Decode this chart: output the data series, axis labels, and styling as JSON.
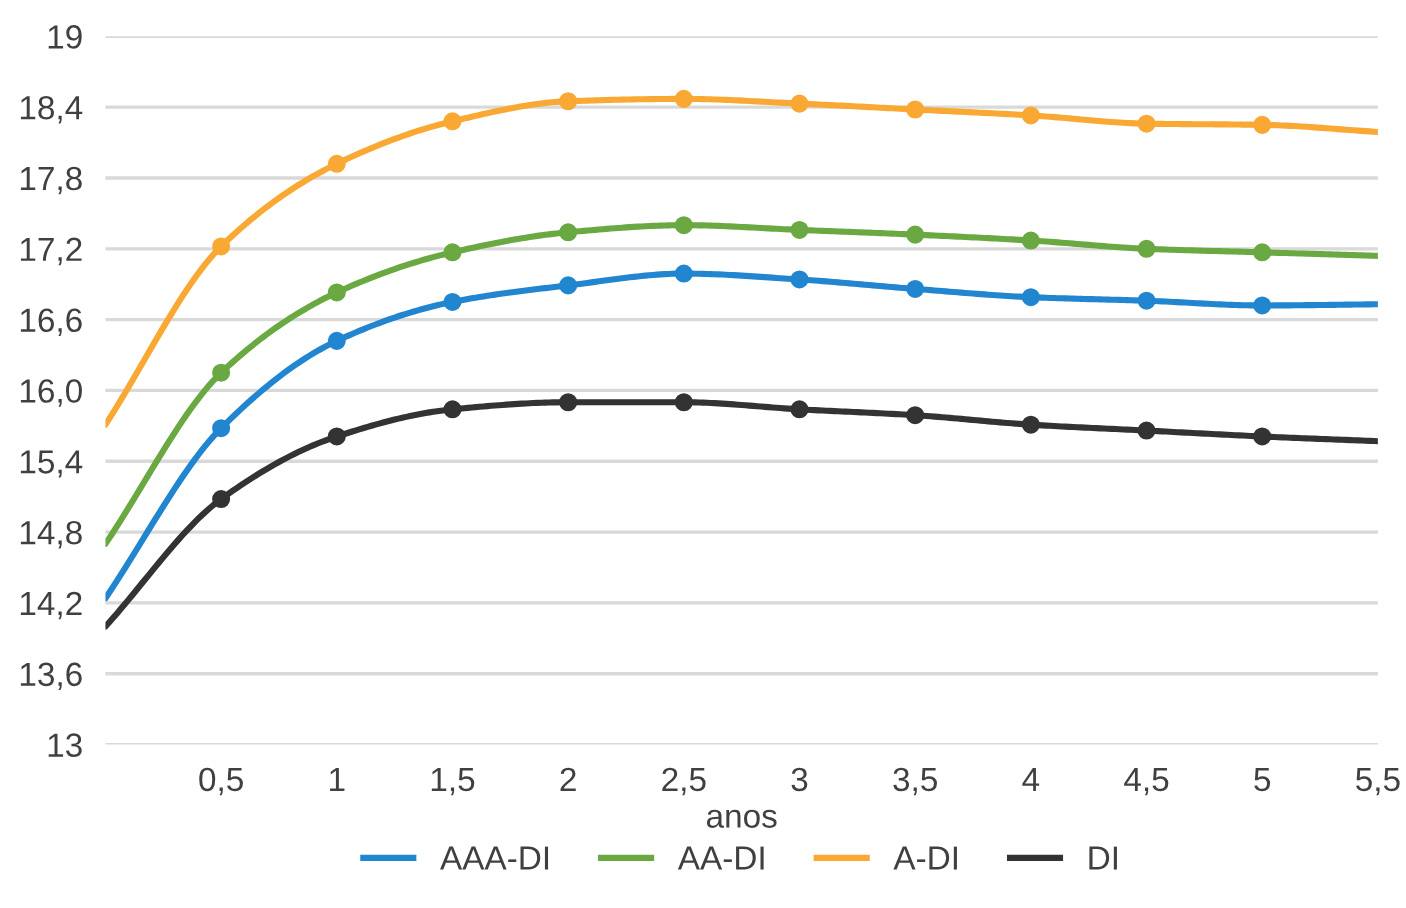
{
  "chart_data": {
    "type": "line",
    "xlabel": "anos",
    "x": [
      0,
      0.5,
      1,
      1.5,
      2,
      2.5,
      3,
      3.5,
      4,
      4.5,
      5,
      5.5
    ],
    "series": [
      {
        "name": "AAA-DI",
        "color": "#2185d0",
        "values": [
          14.24,
          15.68,
          16.42,
          16.75,
          16.89,
          16.99,
          16.94,
          16.86,
          16.79,
          16.76,
          16.72,
          16.73
        ]
      },
      {
        "name": "AA-DI",
        "color": "#6aa842",
        "values": [
          14.7,
          16.15,
          16.83,
          17.17,
          17.34,
          17.4,
          17.36,
          17.32,
          17.27,
          17.2,
          17.17,
          17.14
        ]
      },
      {
        "name": "A-DI",
        "color": "#f9a833",
        "values": [
          15.71,
          17.22,
          17.92,
          18.28,
          18.45,
          18.47,
          18.43,
          18.38,
          18.33,
          18.26,
          18.25,
          18.19
        ]
      },
      {
        "name": "DI",
        "color": "#333333",
        "values": [
          14.0,
          15.08,
          15.61,
          15.84,
          15.9,
          15.9,
          15.84,
          15.79,
          15.71,
          15.66,
          15.61,
          15.57
        ]
      }
    ],
    "xlim": [
      0,
      5.5
    ],
    "xticks": [
      {
        "value": 0.5,
        "label": "0,5"
      },
      1,
      {
        "value": 1.5,
        "label": "1,5"
      },
      2,
      {
        "value": 2.5,
        "label": "2,5"
      },
      3,
      {
        "value": 3.5,
        "label": "3,5"
      },
      4,
      {
        "value": 4.5,
        "label": "4,5"
      },
      5,
      {
        "value": 5.5,
        "label": "5,5"
      }
    ],
    "ylim": [
      13,
      19
    ],
    "yticks": [
      13,
      {
        "value": 13.6,
        "label": "13,6"
      },
      {
        "value": 14.2,
        "label": "14,2"
      },
      {
        "value": 14.8,
        "label": "14,8"
      },
      {
        "value": 15.4,
        "label": "15,4"
      },
      {
        "value": 16.0,
        "label": "16,0"
      },
      {
        "value": 16.6,
        "label": "16,6"
      },
      {
        "value": 17.2,
        "label": "17,2"
      },
      {
        "value": 17.8,
        "label": "17,8"
      },
      {
        "value": 18.4,
        "label": "18,4"
      },
      19
    ],
    "grid": "y",
    "legend": "bottom",
    "marker": "circle",
    "line_style": "solid"
  }
}
